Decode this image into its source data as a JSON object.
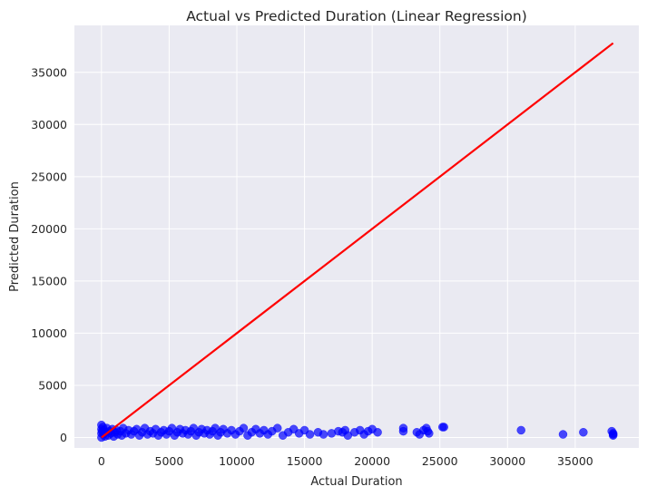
{
  "chart_data": {
    "type": "scatter",
    "title": "Actual vs Predicted Duration (Linear Regression)",
    "xlabel": "Actual Duration",
    "ylabel": "Predicted Duration",
    "xlim": [
      -2000,
      39700
    ],
    "ylim": [
      -1000,
      39500
    ],
    "xticks": [
      "0",
      "5000",
      "10000",
      "15000",
      "20000",
      "25000",
      "30000",
      "35000"
    ],
    "yticks": [
      "0",
      "5000",
      "10000",
      "15000",
      "20000",
      "25000",
      "30000",
      "35000"
    ],
    "grid": true,
    "legend": "none",
    "background_color": "#eaeaf2",
    "grid_color": "#ffffff",
    "point_color": "#0000ff",
    "line_color": "#ff0000",
    "reference_line": {
      "x": [
        0,
        37800
      ],
      "y": [
        0,
        37800
      ]
    },
    "points": {
      "x": [
        0,
        0,
        0,
        0,
        50,
        100,
        150,
        200,
        250,
        300,
        400,
        500,
        600,
        700,
        800,
        900,
        1000,
        1100,
        1200,
        1400,
        1500,
        1600,
        1800,
        2000,
        2200,
        2400,
        2600,
        2800,
        3000,
        3200,
        3400,
        3600,
        3800,
        4000,
        4200,
        4400,
        4600,
        4800,
        5000,
        5200,
        5400,
        5600,
        5800,
        6000,
        6200,
        6400,
        6600,
        6800,
        7000,
        7200,
        7400,
        7600,
        7800,
        8000,
        8200,
        8400,
        8600,
        8800,
        9000,
        9300,
        9600,
        9900,
        10200,
        10500,
        10800,
        11100,
        11400,
        11700,
        12000,
        12300,
        12600,
        13000,
        13400,
        13800,
        14200,
        14600,
        15000,
        15400,
        16000,
        16400,
        17000,
        17500,
        17800,
        18000,
        18200,
        18700,
        19100,
        19400,
        19700,
        20000,
        20400,
        22300,
        22300,
        23300,
        23500,
        23800,
        24000,
        24100,
        24200,
        25200,
        25300,
        31000,
        34100,
        35600,
        37800,
        37800,
        37800,
        37700
      ],
      "y": [
        1200,
        800,
        400,
        0,
        600,
        1000,
        300,
        700,
        100,
        500,
        900,
        200,
        600,
        400,
        800,
        100,
        500,
        700,
        300,
        600,
        200,
        900,
        400,
        700,
        300,
        600,
        800,
        200,
        500,
        900,
        300,
        600,
        400,
        800,
        200,
        500,
        700,
        300,
        600,
        900,
        200,
        500,
        800,
        400,
        700,
        300,
        600,
        900,
        200,
        500,
        800,
        400,
        700,
        300,
        600,
        900,
        200,
        500,
        800,
        400,
        700,
        300,
        600,
        900,
        200,
        500,
        800,
        400,
        700,
        300,
        600,
        900,
        200,
        500,
        800,
        400,
        700,
        300,
        500,
        300,
        400,
        600,
        500,
        700,
        200,
        500,
        700,
        300,
        600,
        800,
        500,
        600,
        900,
        500,
        300,
        700,
        900,
        600,
        400,
        1000,
        1000,
        700,
        300,
        500,
        400,
        300,
        200,
        600
      ]
    }
  }
}
